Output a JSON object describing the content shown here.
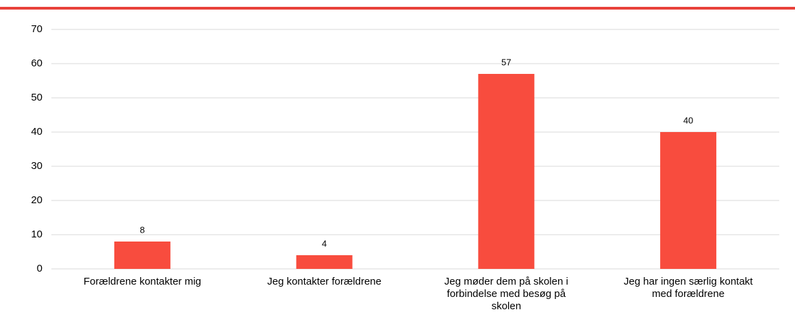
{
  "chart_data": {
    "type": "bar",
    "categories": [
      "Forældrene kontakter mig",
      "Jeg kontakter forældrene",
      "Jeg møder dem på skolen i forbindelse med besøg på skolen",
      "Jeg har ingen særlig kontakt med forældrene"
    ],
    "values": [
      8,
      4,
      57,
      40
    ],
    "color": "#f84c3e",
    "ylim": [
      0,
      70
    ],
    "yticks": [
      0,
      10,
      20,
      30,
      40,
      50,
      60,
      70
    ],
    "grid": true
  }
}
